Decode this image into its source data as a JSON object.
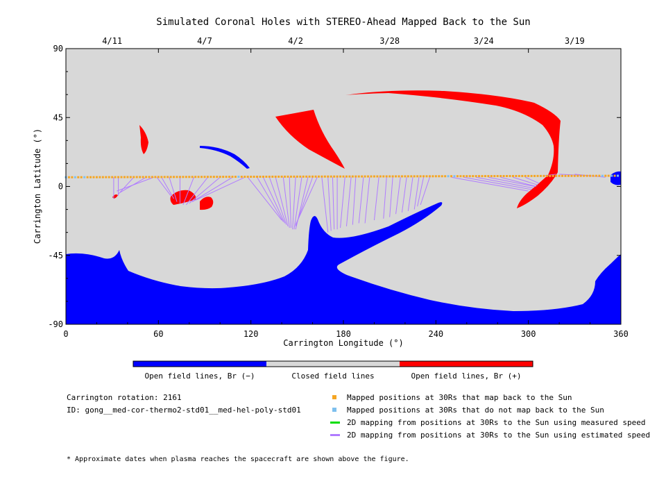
{
  "chart_data": {
    "type": "map",
    "title": "Simulated Coronal Holes with STEREO-Ahead Mapped Back to the Sun",
    "xlabel": "Carrington Longitude (°)",
    "ylabel": "Carrington Latitude (°)",
    "xlim": [
      0,
      360
    ],
    "ylim": [
      -90,
      90
    ],
    "x_ticks": [
      "0",
      "60",
      "120",
      "180",
      "240",
      "300",
      "360"
    ],
    "x_tick_values": [
      0,
      60,
      120,
      180,
      240,
      300,
      360
    ],
    "y_ticks": [
      "90",
      "45",
      "0",
      "-45",
      "-90"
    ],
    "y_tick_values": [
      90,
      45,
      0,
      -45,
      -90
    ],
    "top_dates": [
      {
        "label": "4/11",
        "lon": 30
      },
      {
        "label": "4/7",
        "lon": 90
      },
      {
        "label": "4/2",
        "lon": 149
      },
      {
        "label": "3/28",
        "lon": 210
      },
      {
        "label": "3/24",
        "lon": 271
      },
      {
        "label": "3/19",
        "lon": 330
      }
    ],
    "colors": {
      "negative": "#0000ff",
      "closed": "#d8d8d8",
      "positive": "#ff0000",
      "mapped_back": "#f5a623",
      "not_mapped": "#7ec0ee",
      "measured": "#00dd00",
      "estimated": "#b07cff"
    },
    "colorbar_labels": [
      "Open field lines, Br (−)",
      "Closed field lines",
      "Open field lines, Br (+)"
    ],
    "mapping_lines": [
      [
        31,
        6,
        31,
        -8
      ],
      [
        34,
        6,
        34,
        -6
      ],
      [
        44,
        6,
        34,
        -5
      ],
      [
        52,
        6,
        35,
        -4
      ],
      [
        57,
        6,
        33,
        -3
      ],
      [
        59,
        6,
        68,
        -6
      ],
      [
        62,
        6,
        70,
        -8
      ],
      [
        67,
        6,
        72,
        -10
      ],
      [
        74,
        6,
        74,
        -11
      ],
      [
        83,
        6,
        76,
        -12
      ],
      [
        92,
        6,
        78,
        -12
      ],
      [
        100,
        6,
        80,
        -11
      ],
      [
        108,
        6,
        82,
        -10
      ],
      [
        116,
        6,
        84,
        -9
      ],
      [
        118,
        6,
        140,
        -22
      ],
      [
        124,
        6,
        141,
        -23
      ],
      [
        128,
        6,
        142,
        -24
      ],
      [
        132,
        6,
        143,
        -25
      ],
      [
        136,
        6,
        144,
        -26
      ],
      [
        141,
        6,
        145,
        -27
      ],
      [
        145,
        6,
        146,
        -27
      ],
      [
        149,
        6,
        147,
        -28
      ],
      [
        153,
        6,
        148,
        -28
      ],
      [
        157,
        6,
        149,
        -28
      ],
      [
        160,
        6,
        149,
        -26
      ],
      [
        163,
        6,
        149,
        -25
      ],
      [
        166,
        6,
        170,
        -30
      ],
      [
        170,
        6,
        172,
        -29
      ],
      [
        173,
        6,
        174,
        -28
      ],
      [
        176,
        6,
        176,
        -28
      ],
      [
        181,
        6,
        178,
        -27
      ],
      [
        185,
        6,
        182,
        -26
      ],
      [
        188,
        6,
        186,
        -25
      ],
      [
        193,
        6,
        190,
        -24
      ],
      [
        197,
        6,
        194,
        -24
      ],
      [
        203,
        6,
        200,
        -22
      ],
      [
        208,
        6,
        206,
        -21
      ],
      [
        212,
        6,
        210,
        -20
      ],
      [
        217,
        6,
        214,
        -18
      ],
      [
        221,
        6,
        218,
        -17
      ],
      [
        225,
        6,
        222,
        -16
      ],
      [
        229,
        6,
        226,
        -15
      ],
      [
        232,
        6,
        228,
        -13
      ],
      [
        236,
        6,
        230,
        -12
      ],
      [
        250,
        6,
        300,
        -3
      ],
      [
        258,
        6,
        302,
        -2
      ],
      [
        266,
        6,
        303,
        -1
      ],
      [
        274,
        6,
        304,
        0
      ],
      [
        282,
        6,
        305,
        0
      ],
      [
        290,
        6,
        306,
        1
      ],
      [
        298,
        6,
        307,
        2
      ],
      [
        310,
        7,
        318,
        8
      ],
      [
        320,
        8,
        340,
        7
      ],
      [
        330,
        8,
        350,
        6
      ]
    ],
    "not_mapped_lons": [
      0,
      6,
      12,
      112,
      248,
      252,
      348,
      354,
      358
    ],
    "mapped_line_lat_start": 6,
    "mapped_line_lat_end": 7
  },
  "notes": {
    "rotation": "Carrington rotation: 2161",
    "id": "ID: gong__med-cor-thermo2-std01__med-hel-poly-std01",
    "footnote": "* Approximate dates when plasma reaches the spacecraft are shown above the figure."
  },
  "legend": [
    {
      "label": "Mapped positions at 30Rs that map back to the Sun",
      "kind": "square",
      "color": "#f5a623"
    },
    {
      "label": "Mapped positions at 30Rs that do not map back to the Sun",
      "kind": "square",
      "color": "#7ec0ee"
    },
    {
      "label": "2D mapping from positions at 30Rs to the Sun using measured speed",
      "kind": "line",
      "color": "#00dd00"
    },
    {
      "label": "2D mapping from positions at 30Rs to the Sun using estimated speed",
      "kind": "line",
      "color": "#b07cff"
    }
  ]
}
